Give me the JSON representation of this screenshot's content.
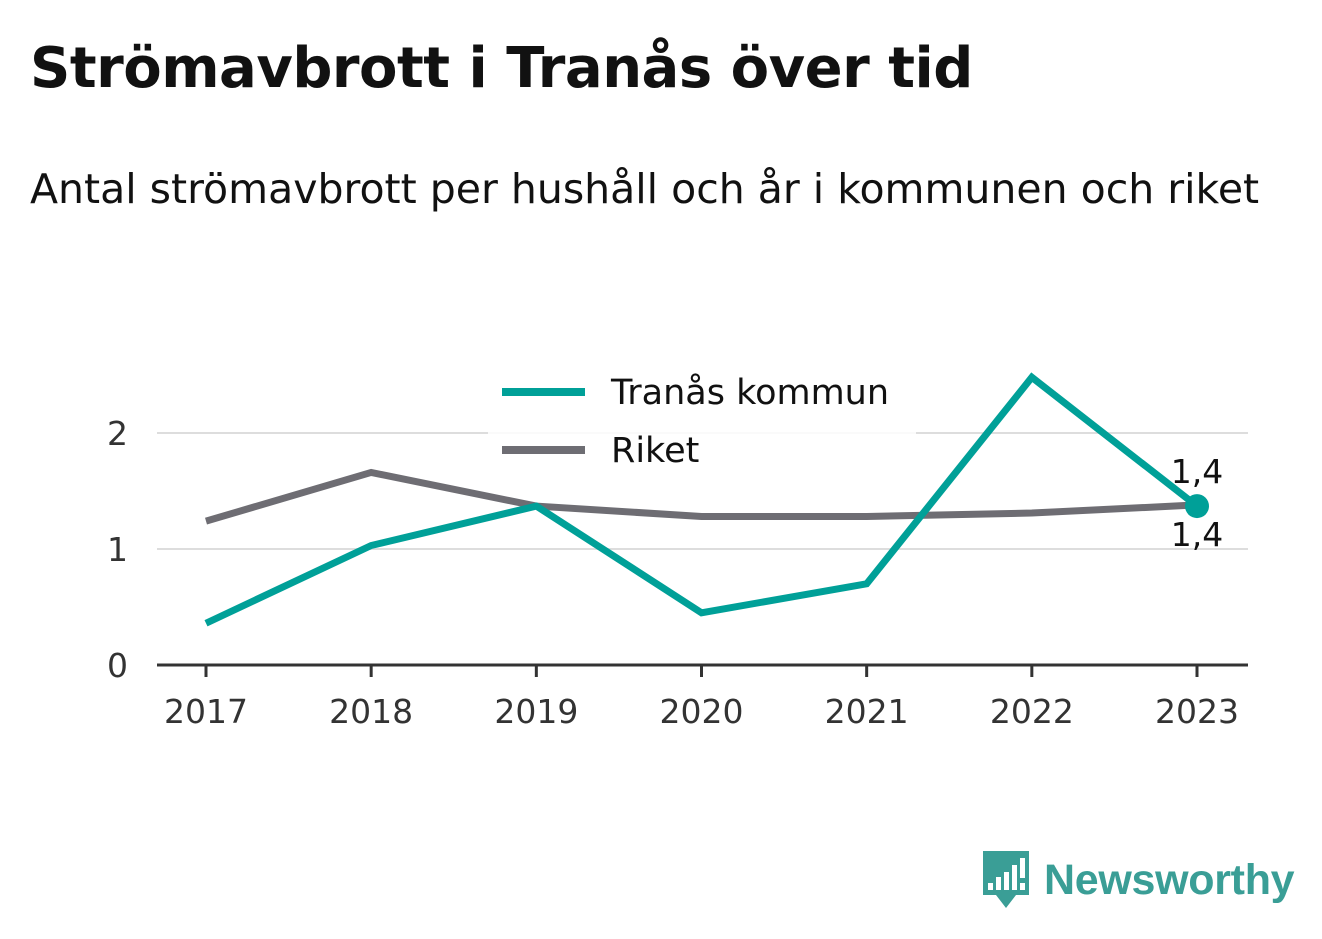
{
  "title": "Strömavbrott i Tranås över tid",
  "subtitle": "Antal strömavbrott per hushåll och år i kommunen och riket",
  "brand": "Newsworthy",
  "chart_data": {
    "type": "line",
    "x": [
      "2017",
      "2018",
      "2019",
      "2020",
      "2021",
      "2022",
      "2023"
    ],
    "ylim": [
      0,
      2.5
    ],
    "yticks": [
      "0",
      "1",
      "2"
    ],
    "grid": true,
    "legend_position": "top-center",
    "series": [
      {
        "name": "Tranås kommun",
        "color": "#00a098",
        "values": [
          0.36,
          1.03,
          1.37,
          0.45,
          0.7,
          2.48,
          1.37
        ],
        "end_label": "1,4"
      },
      {
        "name": "Riket",
        "color": "#6e6d73",
        "values": [
          1.24,
          1.66,
          1.37,
          1.28,
          1.28,
          1.31,
          1.38
        ],
        "end_label": "1,4"
      }
    ]
  }
}
